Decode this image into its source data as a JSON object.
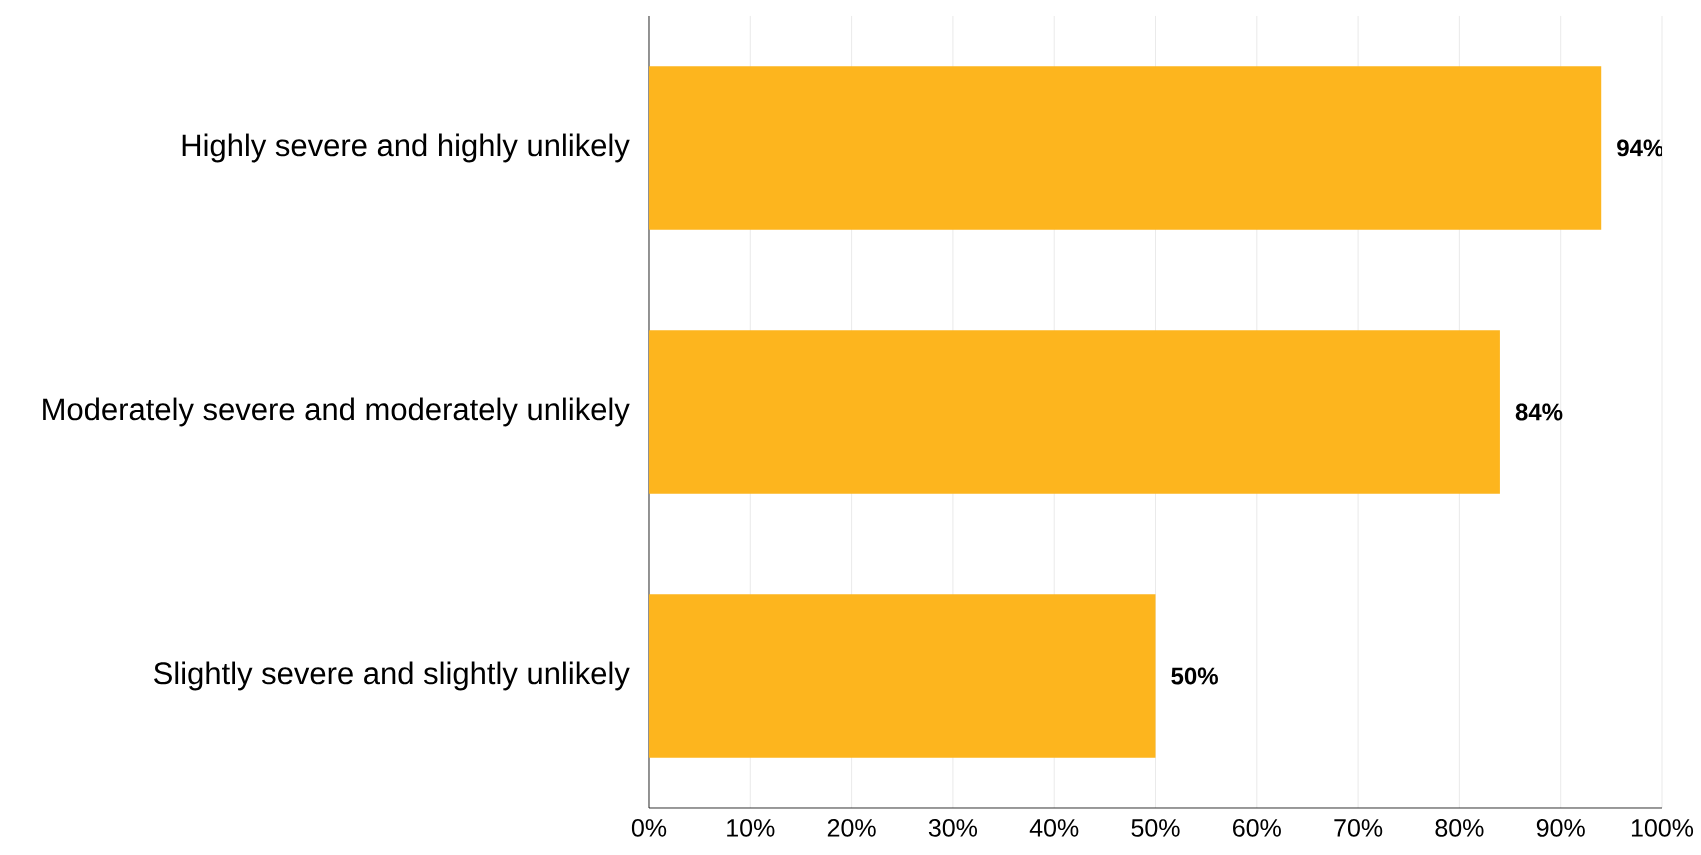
{
  "chart_data": {
    "type": "bar",
    "orientation": "horizontal",
    "categories": [
      "Highly severe and highly unlikely",
      "Moderately severe and moderately unlikely",
      "Slightly severe and slightly unlikely"
    ],
    "values": [
      94,
      84,
      50
    ],
    "value_labels": [
      "94%",
      "84%",
      "50%"
    ],
    "color": "#fdb51e",
    "xlim": [
      0,
      100
    ],
    "xticks": [
      {
        "value": 0,
        "label": "0%"
      },
      {
        "value": 10,
        "label": "10%"
      },
      {
        "value": 20,
        "label": "20%"
      },
      {
        "value": 30,
        "label": "30%"
      },
      {
        "value": 40,
        "label": "40%"
      },
      {
        "value": 50,
        "label": "50%"
      },
      {
        "value": 60,
        "label": "60%"
      },
      {
        "value": 70,
        "label": "70%"
      },
      {
        "value": 80,
        "label": "80%"
      },
      {
        "value": 90,
        "label": "90%"
      },
      {
        "value": 100,
        "label": "100%"
      }
    ],
    "grid": "x"
  }
}
